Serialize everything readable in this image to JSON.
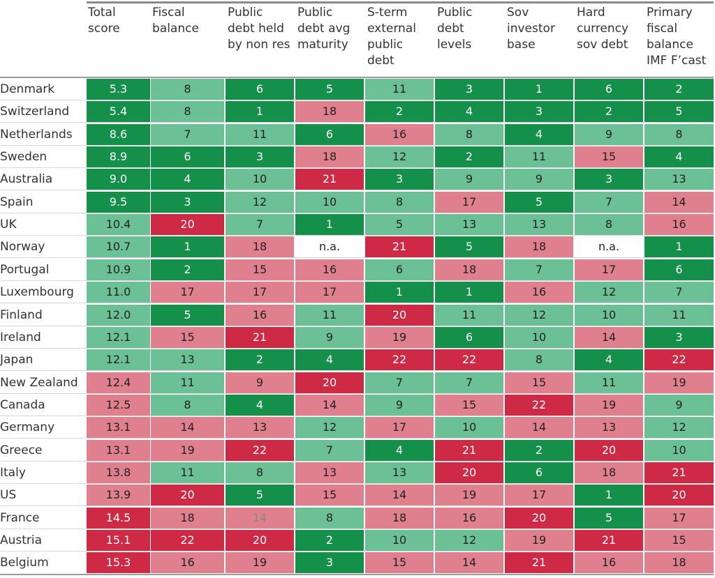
{
  "headers": [
    "Total\nscore",
    "Fiscal\nbalance",
    "Public\ndebt held\nby non res",
    "Public\ndebt avg\nmaturity",
    "S-term\nexternal\npublic\ndebt",
    "Public\ndebt\nlevels",
    "Sov\ninvestor\nbase",
    "Hard\ncurrency\nsov debt",
    "Primary\nfiscal\nbalance\nIMF F’cast"
  ],
  "colors": {
    "dark_green": "#14904a",
    "light_green": "#6cc095",
    "light_red": "#e0808f",
    "dark_red": "#cf2a45",
    "na": "#ffffff",
    "grey_text": "#888888"
  },
  "chart_data": {
    "type": "table",
    "rows": [
      {
        "country": "Denmark",
        "values": [
          "5.3",
          "8",
          "6",
          "5",
          "11",
          "3",
          "1",
          "6",
          "2"
        ]
      },
      {
        "country": "Switzerland",
        "values": [
          "5.4",
          "8",
          "1",
          "18",
          "2",
          "4",
          "3",
          "2",
          "5"
        ]
      },
      {
        "country": "Netherlands",
        "values": [
          "8.6",
          "7",
          "11",
          "6",
          "16",
          "8",
          "4",
          "9",
          "8"
        ]
      },
      {
        "country": "Sweden",
        "values": [
          "8.9",
          "6",
          "3",
          "18",
          "12",
          "2",
          "11",
          "15",
          "4"
        ]
      },
      {
        "country": "Australia",
        "values": [
          "9.0",
          "4",
          "10",
          "21",
          "3",
          "9",
          "9",
          "3",
          "13"
        ]
      },
      {
        "country": "Spain",
        "values": [
          "9.5",
          "3",
          "12",
          "10",
          "8",
          "17",
          "5",
          "7",
          "14"
        ]
      },
      {
        "country": "UK",
        "values": [
          "10.4",
          "20",
          "7",
          "1",
          "5",
          "13",
          "13",
          "8",
          "16"
        ]
      },
      {
        "country": "Norway",
        "values": [
          "10.7",
          "1",
          "18",
          "n.a.",
          "21",
          "5",
          "18",
          "n.a.",
          "1"
        ]
      },
      {
        "country": "Portugal",
        "values": [
          "10.9",
          "2",
          "15",
          "16",
          "6",
          "18",
          "7",
          "17",
          "6"
        ]
      },
      {
        "country": "Luxembourg",
        "values": [
          "11.0",
          "17",
          "17",
          "17",
          "1",
          "1",
          "16",
          "12",
          "7"
        ]
      },
      {
        "country": "Finland",
        "values": [
          "12.0",
          "5",
          "16",
          "11",
          "20",
          "11",
          "12",
          "10",
          "11"
        ]
      },
      {
        "country": "Ireland",
        "values": [
          "12.1",
          "15",
          "21",
          "9",
          "19",
          "6",
          "10",
          "14",
          "3"
        ]
      },
      {
        "country": "Japan",
        "values": [
          "12.1",
          "13",
          "2",
          "4",
          "22",
          "22",
          "8",
          "4",
          "22"
        ]
      },
      {
        "country": "New Zealand",
        "values": [
          "12.4",
          "11",
          "9",
          "20",
          "7",
          "7",
          "15",
          "11",
          "19"
        ]
      },
      {
        "country": "Canada",
        "values": [
          "12.5",
          "8",
          "4",
          "14",
          "9",
          "15",
          "22",
          "19",
          "9"
        ]
      },
      {
        "country": "Germany",
        "values": [
          "13.1",
          "14",
          "13",
          "12",
          "17",
          "10",
          "14",
          "13",
          "12"
        ]
      },
      {
        "country": "Greece",
        "values": [
          "13.1",
          "19",
          "22",
          "7",
          "4",
          "21",
          "2",
          "20",
          "10"
        ]
      },
      {
        "country": "Italy",
        "values": [
          "13.8",
          "11",
          "8",
          "13",
          "13",
          "20",
          "6",
          "18",
          "21"
        ]
      },
      {
        "country": "US",
        "values": [
          "13.9",
          "20",
          "5",
          "15",
          "14",
          "19",
          "17",
          "1",
          "20"
        ]
      },
      {
        "country": "France",
        "values": [
          "14.5",
          "18",
          "14",
          "8",
          "18",
          "16",
          "20",
          "5",
          "17"
        ]
      },
      {
        "country": "Austria",
        "values": [
          "15.1",
          "22",
          "20",
          "2",
          "10",
          "12",
          "19",
          "21",
          "15"
        ]
      },
      {
        "country": "Belgium",
        "values": [
          "15.3",
          "16",
          "19",
          "3",
          "15",
          "14",
          "21",
          "16",
          "18"
        ]
      }
    ],
    "shades": [
      [
        "dg",
        "lg",
        "dg",
        "dg",
        "lg",
        "dg",
        "dg",
        "dg",
        "dg"
      ],
      [
        "dg",
        "lg",
        "dg",
        "lr",
        "dg",
        "dg",
        "dg",
        "dg",
        "dg"
      ],
      [
        "dg",
        "lg",
        "lg",
        "dg",
        "lr",
        "lg",
        "dg",
        "lg",
        "lg"
      ],
      [
        "dg",
        "dg",
        "dg",
        "lr",
        "lg",
        "dg",
        "lg",
        "lr",
        "dg"
      ],
      [
        "dg",
        "dg",
        "lg",
        "dr",
        "dg",
        "lg",
        "lg",
        "dg",
        "lg"
      ],
      [
        "dg",
        "dg",
        "lg",
        "lg",
        "lg",
        "lr",
        "dg",
        "lg",
        "lr"
      ],
      [
        "lg",
        "dr",
        "lg",
        "dg",
        "lg",
        "lg",
        "lg",
        "lg",
        "lr"
      ],
      [
        "lg",
        "dg",
        "lr",
        "na",
        "dr",
        "dg",
        "lr",
        "na",
        "dg"
      ],
      [
        "lg",
        "dg",
        "lr",
        "lr",
        "lg",
        "lr",
        "lg",
        "lr",
        "dg"
      ],
      [
        "lg",
        "lr",
        "lr",
        "lr",
        "dg",
        "dg",
        "lr",
        "lg",
        "lg"
      ],
      [
        "lg",
        "dg",
        "lr",
        "lg",
        "dr",
        "lg",
        "lg",
        "lg",
        "lg"
      ],
      [
        "lg",
        "lr",
        "dr",
        "lg",
        "lr",
        "dg",
        "lg",
        "lr",
        "dg"
      ],
      [
        "lg",
        "lg",
        "dg",
        "dg",
        "dr",
        "dr",
        "lg",
        "dg",
        "dr"
      ],
      [
        "lr",
        "lg",
        "lr",
        "dr",
        "lg",
        "lg",
        "lr",
        "lg",
        "lr"
      ],
      [
        "lr",
        "lg",
        "dg",
        "lr",
        "lg",
        "lr",
        "dr",
        "lr",
        "lg"
      ],
      [
        "lr",
        "lr",
        "lr",
        "lg",
        "lr",
        "lg",
        "lr",
        "lr",
        "lg"
      ],
      [
        "lr",
        "lr",
        "dr",
        "lg",
        "dg",
        "dr",
        "dg",
        "dr",
        "lg"
      ],
      [
        "lr",
        "lg",
        "lg",
        "lr",
        "lg",
        "dr",
        "dg",
        "lr",
        "dr"
      ],
      [
        "lr",
        "dr",
        "dg",
        "lr",
        "lr",
        "lr",
        "lr",
        "dg",
        "dr"
      ],
      [
        "dr",
        "lr",
        "lr",
        "lg",
        "lr",
        "lr",
        "dr",
        "dg",
        "lr"
      ],
      [
        "dr",
        "dr",
        "dr",
        "dg",
        "lg",
        "lg",
        "lr",
        "dr",
        "lr"
      ],
      [
        "dr",
        "lr",
        "lr",
        "dg",
        "lr",
        "lr",
        "dr",
        "lr",
        "lr"
      ]
    ],
    "grey_text_cells": [
      [
        19,
        2
      ]
    ]
  }
}
